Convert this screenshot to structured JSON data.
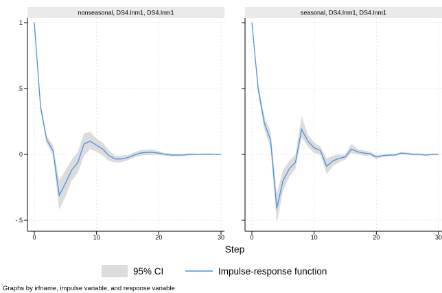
{
  "chart_data": {
    "type": "line",
    "panels": [
      {
        "title": "nonseasonal, DS4.lnm1, DS4.lnm1",
        "x": [
          0,
          1,
          2,
          3,
          4,
          5,
          6,
          7,
          8,
          9,
          10,
          11,
          12,
          13,
          14,
          15,
          16,
          17,
          18,
          19,
          20,
          21,
          22,
          23,
          24,
          25,
          26,
          27,
          28,
          29,
          30
        ],
        "irf": [
          1.0,
          0.36,
          0.11,
          0.03,
          -0.31,
          -0.22,
          -0.12,
          -0.06,
          0.08,
          0.1,
          0.07,
          0.04,
          -0.01,
          -0.035,
          -0.035,
          -0.025,
          -0.005,
          0.01,
          0.015,
          0.015,
          0.01,
          0.0,
          -0.005,
          -0.005,
          -0.005,
          0.0,
          0.0,
          0.0,
          0.002,
          0.0,
          0.0
        ],
        "ci_lower": [
          1.0,
          0.33,
          0.08,
          -0.01,
          -0.42,
          -0.32,
          -0.2,
          -0.14,
          -0.01,
          0.04,
          0.02,
          -0.01,
          -0.05,
          -0.06,
          -0.06,
          -0.045,
          -0.025,
          -0.01,
          -0.005,
          -0.005,
          -0.005,
          -0.01,
          -0.015,
          -0.015,
          -0.012,
          -0.008,
          -0.005,
          -0.005,
          -0.005,
          -0.004,
          -0.003
        ],
        "ci_upper": [
          1.0,
          0.39,
          0.14,
          0.07,
          -0.2,
          -0.12,
          -0.04,
          0.02,
          0.16,
          0.17,
          0.12,
          0.09,
          0.03,
          -0.01,
          -0.01,
          -0.005,
          0.015,
          0.03,
          0.035,
          0.035,
          0.025,
          0.012,
          0.006,
          0.005,
          0.004,
          0.008,
          0.006,
          0.005,
          0.008,
          0.004,
          0.003
        ]
      },
      {
        "title": "seasonal, DS4.lnm1, DS4.lnm1",
        "x": [
          0,
          1,
          2,
          3,
          4,
          5,
          6,
          7,
          8,
          9,
          10,
          11,
          12,
          13,
          14,
          15,
          16,
          17,
          18,
          19,
          20,
          21,
          22,
          23,
          24,
          25,
          26,
          27,
          28,
          29,
          30
        ],
        "irf": [
          1.0,
          0.5,
          0.24,
          0.11,
          -0.41,
          -0.2,
          -0.11,
          -0.06,
          0.19,
          0.1,
          0.05,
          0.03,
          -0.09,
          -0.05,
          -0.03,
          -0.02,
          0.04,
          0.02,
          0.01,
          0.005,
          -0.02,
          -0.01,
          -0.005,
          -0.005,
          0.01,
          0.005,
          0.0,
          0.0,
          -0.005,
          0.0,
          0.0
        ],
        "ci_lower": [
          1.0,
          0.46,
          0.19,
          0.05,
          -0.52,
          -0.28,
          -0.17,
          -0.11,
          0.13,
          0.06,
          0.01,
          0.0,
          -0.15,
          -0.09,
          -0.06,
          -0.04,
          0.01,
          0.0,
          -0.01,
          -0.01,
          -0.035,
          -0.02,
          -0.015,
          -0.012,
          0.0,
          -0.004,
          -0.008,
          -0.008,
          -0.012,
          -0.006,
          -0.004
        ],
        "ci_upper": [
          1.0,
          0.54,
          0.29,
          0.17,
          -0.3,
          -0.12,
          -0.05,
          0.0,
          0.29,
          0.15,
          0.09,
          0.06,
          -0.03,
          -0.01,
          0.0,
          0.0,
          0.08,
          0.04,
          0.03,
          0.02,
          -0.005,
          0.0,
          0.005,
          0.005,
          0.02,
          0.014,
          0.008,
          0.008,
          0.002,
          0.006,
          0.004
        ]
      }
    ],
    "xlabel": "Step",
    "x_ticks": [
      0,
      10,
      20,
      30
    ],
    "x_tick_labels": [
      "0",
      "10",
      "20",
      "30"
    ],
    "y_ticks": [
      1,
      0.5,
      0,
      -0.5
    ],
    "y_tick_labels": [
      "1",
      ".5",
      "0",
      "-.5"
    ],
    "xlim": [
      0,
      30
    ],
    "ylim": [
      -0.55,
      1.05
    ],
    "grid": true,
    "legend": {
      "position": "bottom",
      "items": [
        "95% CI",
        "Impulse-response function"
      ]
    },
    "note": "Graphs by irfname, impulse variable, and response variable",
    "colors": {
      "line": "#4a90e2",
      "ci": "#dcdcdc",
      "panel_title_bg": "#eaeaea"
    }
  }
}
